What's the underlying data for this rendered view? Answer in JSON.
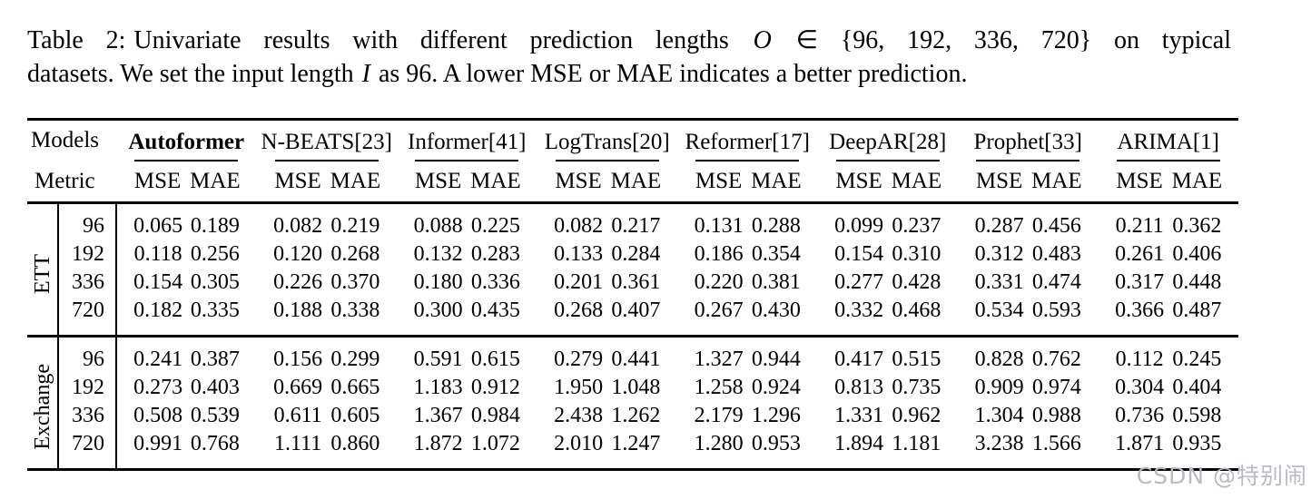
{
  "caption": {
    "line1_label": "Table 2:",
    "line1_a": "Univariate results with different prediction lengths ",
    "line1_var": "O",
    "line1_b": " ∈ {96, 192, 336, 720} on typical",
    "line2_a": "datasets. We set the input length ",
    "line2_var": "I",
    "line2_b": " as 96. A lower MSE or MAE indicates a better prediction."
  },
  "table": {
    "corner_models_label": "Models",
    "corner_metric_label": "Metric",
    "models": [
      {
        "label": "Autoformer",
        "bold": true
      },
      {
        "label": "N-BEATS[23]",
        "bold": false
      },
      {
        "label": "Informer[41]",
        "bold": false
      },
      {
        "label": "LogTrans[20]",
        "bold": false
      },
      {
        "label": "Reformer[17]",
        "bold": false
      },
      {
        "label": "DeepAR[28]",
        "bold": false
      },
      {
        "label": "Prophet[33]",
        "bold": false
      },
      {
        "label": "ARIMA[1]",
        "bold": false
      }
    ],
    "metrics": [
      "MSE",
      "MAE"
    ],
    "groups": [
      {
        "name": "ETT",
        "rows": [
          {
            "length": "96",
            "values": [
              "0.065",
              "0.189",
              "0.082",
              "0.219",
              "0.088",
              "0.225",
              "0.082",
              "0.217",
              "0.131",
              "0.288",
              "0.099",
              "0.237",
              "0.287",
              "0.456",
              "0.211",
              "0.362"
            ],
            "bold_indices": [
              0,
              1
            ]
          },
          {
            "length": "192",
            "values": [
              "0.118",
              "0.256",
              "0.120",
              "0.268",
              "0.132",
              "0.283",
              "0.133",
              "0.284",
              "0.186",
              "0.354",
              "0.154",
              "0.310",
              "0.312",
              "0.483",
              "0.261",
              "0.406"
            ],
            "bold_indices": [
              0,
              1
            ]
          },
          {
            "length": "336",
            "values": [
              "0.154",
              "0.305",
              "0.226",
              "0.370",
              "0.180",
              "0.336",
              "0.201",
              "0.361",
              "0.220",
              "0.381",
              "0.277",
              "0.428",
              "0.331",
              "0.474",
              "0.317",
              "0.448"
            ],
            "bold_indices": [
              0,
              1
            ]
          },
          {
            "length": "720",
            "values": [
              "0.182",
              "0.335",
              "0.188",
              "0.338",
              "0.300",
              "0.435",
              "0.268",
              "0.407",
              "0.267",
              "0.430",
              "0.332",
              "0.468",
              "0.534",
              "0.593",
              "0.366",
              "0.487"
            ],
            "bold_indices": [
              0,
              1
            ]
          }
        ]
      },
      {
        "name": "Exchange",
        "rows": [
          {
            "length": "96",
            "values": [
              "0.241",
              "0.387",
              "0.156",
              "0.299",
              "0.591",
              "0.615",
              "0.279",
              "0.441",
              "1.327",
              "0.944",
              "0.417",
              "0.515",
              "0.828",
              "0.762",
              "0.112",
              "0.245"
            ],
            "bold_indices": [
              14,
              15
            ]
          },
          {
            "length": "192",
            "values": [
              "0.273",
              "0.403",
              "0.669",
              "0.665",
              "1.183",
              "0.912",
              "1.950",
              "1.048",
              "1.258",
              "0.924",
              "0.813",
              "0.735",
              "0.909",
              "0.974",
              "0.304",
              "0.404"
            ],
            "bold_indices": [
              0,
              1
            ]
          },
          {
            "length": "336",
            "values": [
              "0.508",
              "0.539",
              "0.611",
              "0.605",
              "1.367",
              "0.984",
              "2.438",
              "1.262",
              "2.179",
              "1.296",
              "1.331",
              "0.962",
              "1.304",
              "0.988",
              "0.736",
              "0.598"
            ],
            "bold_indices": [
              0,
              1
            ]
          },
          {
            "length": "720",
            "values": [
              "0.991",
              "0.768",
              "1.111",
              "0.860",
              "1.872",
              "1.072",
              "2.010",
              "1.247",
              "1.280",
              "0.953",
              "1.894",
              "1.181",
              "3.238",
              "1.566",
              "1.871",
              "0.935"
            ],
            "bold_indices": [
              0,
              1
            ]
          }
        ]
      }
    ]
  },
  "watermark": "CSDN @特别闹",
  "colors": {
    "text": "#000000",
    "rule": "#000000",
    "watermark": "#b9bac6",
    "background": "#ffffff"
  }
}
